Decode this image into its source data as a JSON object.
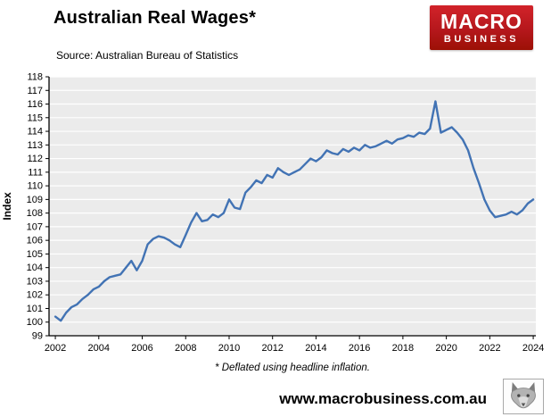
{
  "header": {
    "title": "Australian Real Wages*",
    "source": "Source: Australian Bureau of Statistics"
  },
  "logo": {
    "line1": "MACRO",
    "line2": "BUSINESS",
    "bg_color": "#b5171c",
    "text_color": "#ffffff"
  },
  "chart_data": {
    "type": "line",
    "title": "Australian Real Wages*",
    "xlabel": "",
    "ylabel": "Index",
    "ylim": [
      99,
      118
    ],
    "ytick_step": 1,
    "xticks": [
      2002,
      2004,
      2006,
      2008,
      2010,
      2012,
      2014,
      2016,
      2018,
      2020,
      2022,
      2024
    ],
    "x_range": [
      2001.71,
      2024.12
    ],
    "grid": true,
    "legend": "none",
    "plot_bg": "#ebebeb",
    "grid_color": "#ffffff",
    "axis_color": "#000000",
    "line_color": "#4273b4",
    "series_name": "Australian real wages index (deflated by headline inflation)",
    "x": [
      2002,
      2002.25,
      2002.5,
      2002.75,
      2003,
      2003.25,
      2003.5,
      2003.75,
      2004,
      2004.25,
      2004.5,
      2004.75,
      2005,
      2005.25,
      2005.5,
      2005.75,
      2006,
      2006.25,
      2006.5,
      2006.75,
      2007,
      2007.25,
      2007.5,
      2007.75,
      2008,
      2008.25,
      2008.5,
      2008.75,
      2009,
      2009.25,
      2009.5,
      2009.75,
      2010,
      2010.25,
      2010.5,
      2010.75,
      2011,
      2011.25,
      2011.5,
      2011.75,
      2012,
      2012.25,
      2012.5,
      2012.75,
      2013,
      2013.25,
      2013.5,
      2013.75,
      2014,
      2014.25,
      2014.5,
      2014.75,
      2015,
      2015.25,
      2015.5,
      2015.75,
      2016,
      2016.25,
      2016.5,
      2016.75,
      2017,
      2017.25,
      2017.5,
      2017.75,
      2018,
      2018.25,
      2018.5,
      2018.75,
      2019,
      2019.25,
      2019.5,
      2019.75,
      2020,
      2020.25,
      2020.5,
      2020.75,
      2021,
      2021.25,
      2021.5,
      2021.75,
      2022,
      2022.25,
      2022.5,
      2022.75,
      2023,
      2023.25,
      2023.5,
      2023.75,
      2024
    ],
    "values": [
      100.4,
      100.1,
      100.7,
      101.1,
      101.3,
      101.7,
      102.0,
      102.4,
      102.6,
      103.0,
      103.3,
      103.4,
      103.5,
      104.0,
      104.5,
      103.8,
      104.5,
      105.7,
      106.1,
      106.3,
      106.2,
      106.0,
      105.7,
      105.5,
      106.4,
      107.3,
      108.0,
      107.4,
      107.5,
      107.9,
      107.7,
      108.0,
      109.0,
      108.4,
      108.3,
      109.5,
      109.9,
      110.4,
      110.2,
      110.8,
      110.6,
      111.3,
      111.0,
      110.8,
      111.0,
      111.2,
      111.6,
      112.0,
      111.8,
      112.1,
      112.6,
      112.4,
      112.3,
      112.7,
      112.5,
      112.8,
      112.6,
      113.0,
      112.8,
      112.9,
      113.1,
      113.3,
      113.1,
      113.4,
      113.5,
      113.7,
      113.6,
      113.9,
      113.8,
      114.2,
      116.2,
      113.9,
      114.1,
      114.3,
      113.9,
      113.4,
      112.6,
      111.3,
      110.2,
      109.0,
      108.2,
      107.7,
      107.8,
      107.9,
      108.1,
      107.9,
      108.2,
      108.7,
      109.0
    ],
    "footnote": "* Deflated using headline inflation."
  },
  "footer": {
    "url": "www.macrobusiness.com.au",
    "wolf_icon": "wolf-head"
  }
}
